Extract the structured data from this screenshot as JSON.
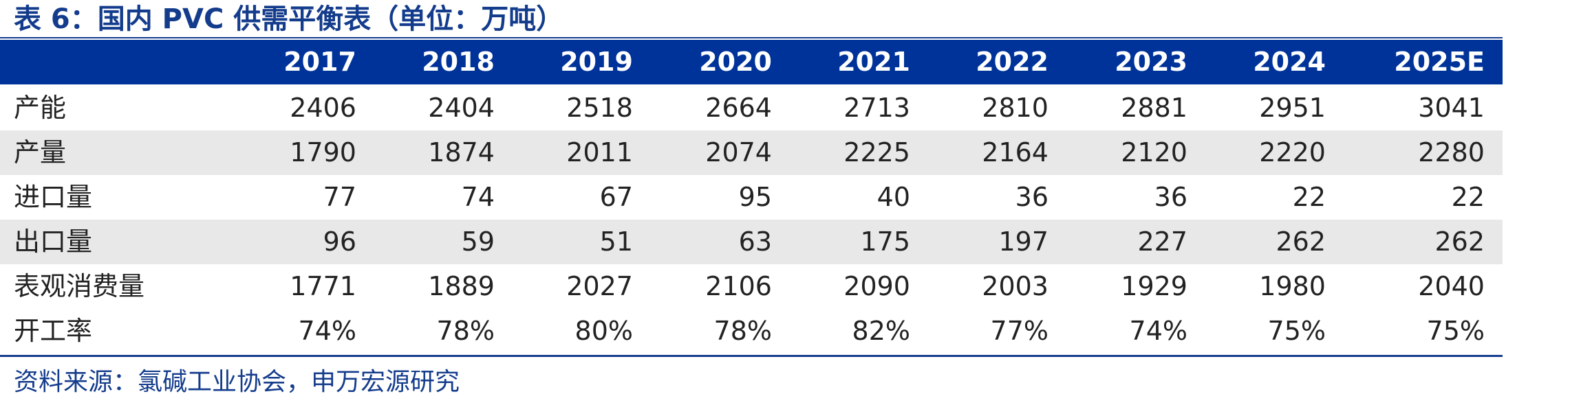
{
  "title": "表 6：国内 PVC 供需平衡表（单位：万吨）",
  "columns": [
    "2017",
    "2018",
    "2019",
    "2020",
    "2021",
    "2022",
    "2023",
    "2024",
    "2025E"
  ],
  "rows": [
    {
      "label": "产能",
      "values": [
        "2406",
        "2404",
        "2518",
        "2664",
        "2713",
        "2810",
        "2881",
        "2951",
        "3041"
      ]
    },
    {
      "label": "产量",
      "values": [
        "1790",
        "1874",
        "2011",
        "2074",
        "2225",
        "2164",
        "2120",
        "2220",
        "2280"
      ]
    },
    {
      "label": "进口量",
      "values": [
        "77",
        "74",
        "67",
        "95",
        "40",
        "36",
        "36",
        "22",
        "22"
      ]
    },
    {
      "label": "出口量",
      "values": [
        "96",
        "59",
        "51",
        "63",
        "175",
        "197",
        "227",
        "262",
        "262"
      ]
    },
    {
      "label": "表观消费量",
      "values": [
        "1771",
        "1889",
        "2027",
        "2106",
        "2090",
        "2003",
        "1929",
        "1980",
        "2040"
      ]
    },
    {
      "label": "开工率",
      "values": [
        "74%",
        "78%",
        "80%",
        "78%",
        "82%",
        "77%",
        "74%",
        "75%",
        "75%"
      ]
    }
  ],
  "source": "资料来源：氯碱工业协会，申万宏源研究",
  "colors": {
    "accent": "#003399",
    "title": "#143c8c",
    "row_shade": "#e8e8e8"
  }
}
